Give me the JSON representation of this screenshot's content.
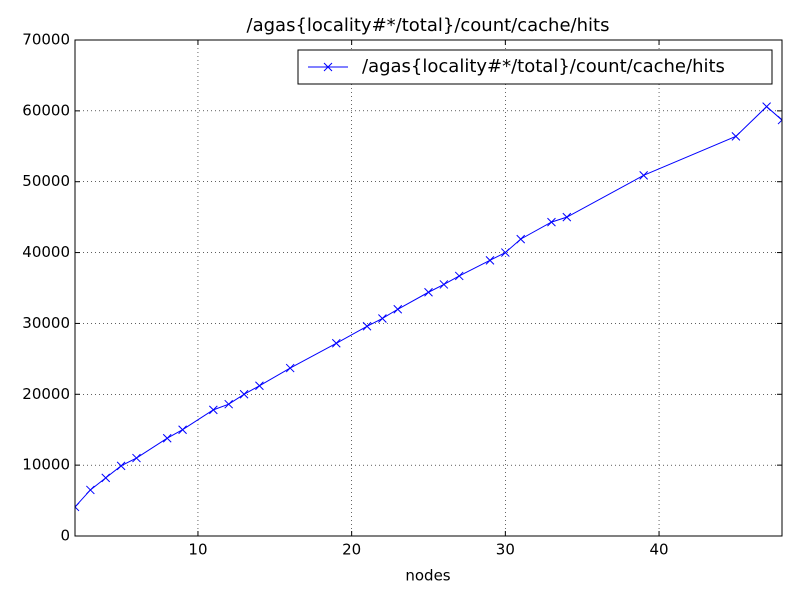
{
  "chart_data": {
    "type": "line",
    "title": "/agas{locality#*/total}/count/cache/hits",
    "x_label": "nodes",
    "x": [
      2,
      3,
      4,
      5,
      6,
      8,
      9,
      11,
      12,
      13,
      14,
      16,
      19,
      21,
      22,
      23,
      25,
      26,
      27,
      29,
      30,
      31,
      33,
      34,
      39,
      45,
      47,
      48
    ],
    "series": [
      {
        "name": "/agas{locality#*/total}/count/cache/hits",
        "color": "#0000ff",
        "values": [
          4100,
          6500,
          8200,
          9900,
          11000,
          13800,
          15000,
          17800,
          18600,
          20000,
          21200,
          23700,
          27200,
          29600,
          30700,
          32000,
          34400,
          35500,
          36700,
          38900,
          40000,
          41900,
          44300,
          45000,
          50900,
          56400,
          60600,
          58700
        ]
      }
    ],
    "xlim": [
      2,
      48
    ],
    "xticks": [
      10,
      20,
      30,
      40
    ],
    "ylim": [
      0,
      70000
    ],
    "yticks": [
      0,
      10000,
      20000,
      30000,
      40000,
      50000,
      60000,
      70000
    ],
    "grid": true,
    "legend": "upper-right"
  }
}
